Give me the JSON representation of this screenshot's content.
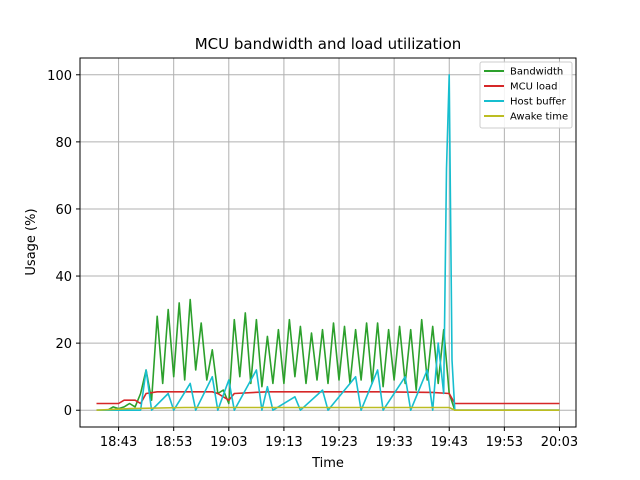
{
  "chart_data": {
    "type": "line",
    "title": "MCU bandwidth and load utilization",
    "xlabel": "Time",
    "ylabel": "Usage (%)",
    "x_ticks": [
      "18:43",
      "18:53",
      "19:03",
      "19:13",
      "19:23",
      "19:33",
      "19:43",
      "19:53",
      "20:03"
    ],
    "y_ticks": [
      "0",
      "20",
      "40",
      "60",
      "80",
      "100"
    ],
    "xlim": [
      "18:36",
      "20:06"
    ],
    "ylim": [
      -5,
      105
    ],
    "grid": true,
    "legend_position": "top-right",
    "series": [
      {
        "name": "Bandwidth",
        "color": "#2ca02c",
        "points": [
          [
            "18:39",
            0
          ],
          [
            "18:41",
            0
          ],
          [
            "18:42",
            1
          ],
          [
            "18:43",
            0.5
          ],
          [
            "18:44",
            1
          ],
          [
            "18:45",
            2
          ],
          [
            "18:46",
            1
          ],
          [
            "18:47",
            5
          ],
          [
            "18:48",
            12
          ],
          [
            "18:49",
            3
          ],
          [
            "18:50",
            28
          ],
          [
            "18:51",
            8
          ],
          [
            "18:52",
            30
          ],
          [
            "18:53",
            10
          ],
          [
            "18:54",
            32
          ],
          [
            "18:55",
            9
          ],
          [
            "18:56",
            33
          ],
          [
            "18:57",
            12
          ],
          [
            "18:58",
            26
          ],
          [
            "18:59",
            9
          ],
          [
            "19:00",
            18
          ],
          [
            "19:01",
            5
          ],
          [
            "19:02",
            6
          ],
          [
            "19:03",
            2
          ],
          [
            "19:04",
            27
          ],
          [
            "19:05",
            10
          ],
          [
            "19:06",
            29
          ],
          [
            "19:07",
            8
          ],
          [
            "19:08",
            27
          ],
          [
            "19:09",
            7
          ],
          [
            "19:10",
            22
          ],
          [
            "19:11",
            8
          ],
          [
            "19:12",
            24
          ],
          [
            "19:13",
            8
          ],
          [
            "19:14",
            27
          ],
          [
            "19:15",
            10
          ],
          [
            "19:16",
            25
          ],
          [
            "19:17",
            8
          ],
          [
            "19:18",
            23
          ],
          [
            "19:19",
            9
          ],
          [
            "19:20",
            24
          ],
          [
            "19:21",
            8
          ],
          [
            "19:22",
            26
          ],
          [
            "19:23",
            9
          ],
          [
            "19:24",
            25
          ],
          [
            "19:25",
            8
          ],
          [
            "19:26",
            24
          ],
          [
            "19:27",
            9
          ],
          [
            "19:28",
            26
          ],
          [
            "19:29",
            8
          ],
          [
            "19:30",
            26
          ],
          [
            "19:31",
            7
          ],
          [
            "19:32",
            24
          ],
          [
            "19:33",
            9
          ],
          [
            "19:34",
            25
          ],
          [
            "19:35",
            8
          ],
          [
            "19:36",
            24
          ],
          [
            "19:37",
            6
          ],
          [
            "19:38",
            27
          ],
          [
            "19:39",
            9
          ],
          [
            "19:40",
            25
          ],
          [
            "19:41",
            8
          ],
          [
            "19:42",
            24
          ],
          [
            "19:43",
            5
          ],
          [
            "19:44",
            0
          ],
          [
            "19:50",
            0
          ],
          [
            "20:00",
            0
          ],
          [
            "20:03",
            0
          ]
        ]
      },
      {
        "name": "MCU load",
        "color": "#d62728",
        "points": [
          [
            "18:39",
            2
          ],
          [
            "18:43",
            2
          ],
          [
            "18:44",
            3
          ],
          [
            "18:46",
            3
          ],
          [
            "18:47",
            2
          ],
          [
            "18:48",
            5
          ],
          [
            "18:50",
            5.5
          ],
          [
            "18:55",
            5.5
          ],
          [
            "19:00",
            5.5
          ],
          [
            "19:01",
            5
          ],
          [
            "19:02",
            4
          ],
          [
            "19:03",
            3
          ],
          [
            "19:04",
            5
          ],
          [
            "19:10",
            5.5
          ],
          [
            "19:20",
            5.5
          ],
          [
            "19:30",
            5.5
          ],
          [
            "19:40",
            5.3
          ],
          [
            "19:43",
            5
          ],
          [
            "19:44",
            2
          ],
          [
            "19:53",
            2
          ],
          [
            "20:03",
            2
          ]
        ]
      },
      {
        "name": "Host buffer",
        "color": "#17becf",
        "points": [
          [
            "18:39",
            0
          ],
          [
            "18:47",
            0
          ],
          [
            "18:48",
            12
          ],
          [
            "18:49",
            0
          ],
          [
            "18:52",
            5
          ],
          [
            "18:53",
            0
          ],
          [
            "18:56",
            8
          ],
          [
            "18:57",
            0
          ],
          [
            "19:00",
            10
          ],
          [
            "19:01",
            0
          ],
          [
            "19:03",
            9
          ],
          [
            "19:04",
            0
          ],
          [
            "19:08",
            12
          ],
          [
            "19:09",
            0
          ],
          [
            "19:10",
            7
          ],
          [
            "19:11",
            0
          ],
          [
            "19:15",
            4
          ],
          [
            "19:16",
            0
          ],
          [
            "19:20",
            6
          ],
          [
            "19:21",
            0
          ],
          [
            "19:26",
            10
          ],
          [
            "19:27",
            0
          ],
          [
            "19:30",
            12
          ],
          [
            "19:31",
            0
          ],
          [
            "19:35",
            10
          ],
          [
            "19:36",
            0
          ],
          [
            "19:39",
            12
          ],
          [
            "19:40",
            0
          ],
          [
            "19:41",
            20
          ],
          [
            "19:42",
            5
          ],
          [
            "19:42.5",
            72
          ],
          [
            "19:43",
            100
          ],
          [
            "19:43.5",
            15
          ],
          [
            "19:44",
            0
          ],
          [
            "20:03",
            0
          ]
        ]
      },
      {
        "name": "Awake time",
        "color": "#bcbd22",
        "points": [
          [
            "18:39",
            0
          ],
          [
            "18:45",
            0.5
          ],
          [
            "18:55",
            0.8
          ],
          [
            "19:05",
            0.8
          ],
          [
            "19:15",
            0.8
          ],
          [
            "19:25",
            0.8
          ],
          [
            "19:35",
            0.8
          ],
          [
            "19:43",
            0.8
          ],
          [
            "19:44",
            0
          ],
          [
            "20:03",
            0
          ]
        ]
      }
    ]
  }
}
